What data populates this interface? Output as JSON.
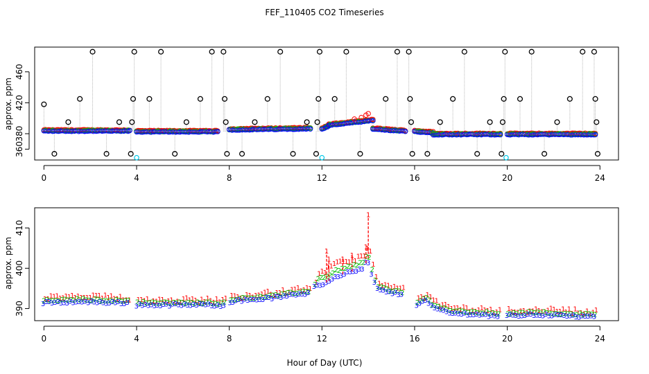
{
  "figure": {
    "title": "FEF_110405  CO2 Timeseries"
  },
  "chart_data": [
    {
      "type": "scatter",
      "title": "FEF_110405  CO2 Timeseries",
      "xlabel": "",
      "ylabel": "approx. ppm",
      "xlim": [
        -0.4,
        24.8
      ],
      "ylim": [
        346,
        492
      ],
      "x_ticks": [
        0,
        4,
        8,
        12,
        16,
        20,
        24
      ],
      "x_tick_labels": [
        "0",
        "4",
        "8",
        "12",
        "16",
        "20",
        "24"
      ],
      "y_ticks": [
        360,
        380,
        420,
        460
      ],
      "y_tick_labels": [
        "360",
        "380",
        "420",
        "460"
      ],
      "series": [
        {
          "name": "black circles",
          "color": "#000000",
          "marker": "circle"
        },
        {
          "name": "red circles",
          "color": "#ff0000",
          "marker": "circle"
        },
        {
          "name": "green circles",
          "color": "#00cc00",
          "marker": "circle"
        },
        {
          "name": "blue circles",
          "color": "#0000ff",
          "marker": "circle"
        },
        {
          "name": "cyan circles",
          "color": "#00c8e8",
          "marker": "circle"
        }
      ],
      "black_spikes": [
        {
          "x": 0.45,
          "y": 354
        },
        {
          "x": 1.05,
          "y": 395
        },
        {
          "x": 1.55,
          "y": 425
        },
        {
          "x": 2.1,
          "y": 486
        },
        {
          "x": 2.7,
          "y": 354
        },
        {
          "x": 3.25,
          "y": 395
        },
        {
          "x": 3.75,
          "y": 354
        },
        {
          "x": 3.8,
          "y": 395
        },
        {
          "x": 3.85,
          "y": 425
        },
        {
          "x": 3.9,
          "y": 486
        },
        {
          "x": 4.55,
          "y": 425
        },
        {
          "x": 5.05,
          "y": 486
        },
        {
          "x": 5.65,
          "y": 354
        },
        {
          "x": 6.15,
          "y": 395
        },
        {
          "x": 6.75,
          "y": 425
        },
        {
          "x": 7.25,
          "y": 486
        },
        {
          "x": 7.75,
          "y": 486
        },
        {
          "x": 7.8,
          "y": 425
        },
        {
          "x": 7.85,
          "y": 395
        },
        {
          "x": 7.9,
          "y": 354
        },
        {
          "x": 8.55,
          "y": 354
        },
        {
          "x": 9.1,
          "y": 395
        },
        {
          "x": 9.65,
          "y": 425
        },
        {
          "x": 10.2,
          "y": 486
        },
        {
          "x": 10.75,
          "y": 354
        },
        {
          "x": 11.35,
          "y": 395
        },
        {
          "x": 11.75,
          "y": 354
        },
        {
          "x": 11.8,
          "y": 395
        },
        {
          "x": 11.85,
          "y": 425
        },
        {
          "x": 11.9,
          "y": 486
        },
        {
          "x": 12.55,
          "y": 425
        },
        {
          "x": 13.05,
          "y": 486
        },
        {
          "x": 13.65,
          "y": 354
        },
        {
          "x": 14.75,
          "y": 425
        },
        {
          "x": 15.25,
          "y": 486
        },
        {
          "x": 15.75,
          "y": 486
        },
        {
          "x": 15.8,
          "y": 425
        },
        {
          "x": 15.85,
          "y": 395
        },
        {
          "x": 15.9,
          "y": 354
        },
        {
          "x": 16.55,
          "y": 354
        },
        {
          "x": 17.1,
          "y": 395
        },
        {
          "x": 17.65,
          "y": 425
        },
        {
          "x": 18.15,
          "y": 486
        },
        {
          "x": 18.7,
          "y": 354
        },
        {
          "x": 19.25,
          "y": 395
        },
        {
          "x": 19.75,
          "y": 354
        },
        {
          "x": 19.8,
          "y": 395
        },
        {
          "x": 19.85,
          "y": 425
        },
        {
          "x": 19.9,
          "y": 486
        },
        {
          "x": 20.55,
          "y": 425
        },
        {
          "x": 21.05,
          "y": 486
        },
        {
          "x": 21.6,
          "y": 354
        },
        {
          "x": 22.15,
          "y": 395
        },
        {
          "x": 22.7,
          "y": 425
        },
        {
          "x": 23.25,
          "y": 486
        },
        {
          "x": 23.75,
          "y": 486
        },
        {
          "x": 23.8,
          "y": 425
        },
        {
          "x": 23.85,
          "y": 395
        },
        {
          "x": 23.9,
          "y": 354
        },
        {
          "x": 0.0,
          "y": 418
        }
      ],
      "cyan_points": [
        {
          "x": 4.0,
          "y": 349
        },
        {
          "x": 12.0,
          "y": 349
        },
        {
          "x": 19.95,
          "y": 349
        }
      ],
      "baseline_ranges": [
        {
          "x_from": 0.0,
          "x_to": 3.7,
          "y_from": 383.5,
          "y_to": 383.5
        },
        {
          "x_from": 4.0,
          "x_to": 7.5,
          "y_from": 382.5,
          "y_to": 382.5
        },
        {
          "x_from": 8.0,
          "x_to": 11.5,
          "y_from": 385,
          "y_to": 386.5
        },
        {
          "x_from": 12.0,
          "x_to": 12.3,
          "y_from": 386,
          "y_to": 390
        },
        {
          "x_from": 12.3,
          "x_to": 14.2,
          "y_from": 391,
          "y_to": 397
        },
        {
          "x_from": 14.2,
          "x_to": 15.6,
          "y_from": 386,
          "y_to": 383
        },
        {
          "x_from": 16.0,
          "x_to": 16.8,
          "y_from": 383,
          "y_to": 381
        },
        {
          "x_from": 16.8,
          "x_to": 19.7,
          "y_from": 379,
          "y_to": 379
        },
        {
          "x_from": 20.0,
          "x_to": 23.8,
          "y_from": 379,
          "y_to": 379
        }
      ]
    },
    {
      "type": "scatter",
      "title": "",
      "xlabel": "Hour of Day (UTC)",
      "ylabel": "approx. ppm",
      "xlim": [
        -0.4,
        24.8
      ],
      "ylim": [
        387,
        415
      ],
      "x_ticks": [
        0,
        4,
        8,
        12,
        16,
        20,
        24
      ],
      "x_tick_labels": [
        "0",
        "4",
        "8",
        "12",
        "16",
        "20",
        "24"
      ],
      "y_ticks": [
        390,
        400,
        410
      ],
      "y_tick_labels": [
        "390",
        "400",
        "410"
      ],
      "series": [
        {
          "name": "1",
          "color": "#ff0000",
          "marker": "1"
        },
        {
          "name": "2",
          "color": "#00bb00",
          "marker": "2"
        },
        {
          "name": "3",
          "color": "#0000ff",
          "marker": "3"
        }
      ],
      "curve": [
        {
          "x": 0.0,
          "y": 391.5
        },
        {
          "x": 1.5,
          "y": 391.8
        },
        {
          "x": 3.7,
          "y": 391.5
        },
        {
          "x": 4.0,
          "y": 391.0
        },
        {
          "x": 7.5,
          "y": 391.0
        },
        {
          "x": 7.6,
          "y": 390.8
        },
        {
          "x": 7.8,
          "y": 391.0
        },
        {
          "x": 8.0,
          "y": 391.8
        },
        {
          "x": 10.0,
          "y": 392.8
        },
        {
          "x": 11.5,
          "y": 394.0
        },
        {
          "x": 11.6,
          "y": 395.0
        },
        {
          "x": 11.8,
          "y": 396.0
        },
        {
          "x": 12.0,
          "y": 396.0
        },
        {
          "x": 12.2,
          "y": 396.5
        },
        {
          "x": 12.6,
          "y": 398.0
        },
        {
          "x": 13.2,
          "y": 399.0
        },
        {
          "x": 13.8,
          "y": 400.0
        },
        {
          "x": 14.0,
          "y": 402.5
        },
        {
          "x": 14.1,
          "y": 399.5
        },
        {
          "x": 14.4,
          "y": 395.0
        },
        {
          "x": 15.0,
          "y": 394.0
        },
        {
          "x": 15.6,
          "y": 393.6
        },
        {
          "x": 16.0,
          "y": 390.5
        },
        {
          "x": 16.5,
          "y": 392.5
        },
        {
          "x": 16.8,
          "y": 390.5
        },
        {
          "x": 17.5,
          "y": 389.0
        },
        {
          "x": 19.7,
          "y": 388.3
        },
        {
          "x": 20.0,
          "y": 388.3
        },
        {
          "x": 21.5,
          "y": 388.6
        },
        {
          "x": 23.8,
          "y": 388.0
        }
      ],
      "red_spikes": [
        {
          "x": 12.2,
          "y": 404
        },
        {
          "x": 12.3,
          "y": 402
        },
        {
          "x": 13.9,
          "y": 405
        },
        {
          "x": 14.0,
          "y": 413
        },
        {
          "x": 12.9,
          "y": 402
        },
        {
          "x": 13.3,
          "y": 403
        }
      ]
    }
  ],
  "panels": {
    "top": {
      "ylabel": "approx. ppm",
      "x_tick_labels": [
        "0",
        "4",
        "8",
        "12",
        "16",
        "20",
        "24"
      ],
      "y_tick_labels": [
        "360",
        "380",
        "420",
        "460"
      ]
    },
    "bottom": {
      "ylabel": "approx. ppm",
      "xlabel": "Hour of Day (UTC)",
      "x_tick_labels": [
        "0",
        "4",
        "8",
        "12",
        "16",
        "20",
        "24"
      ],
      "y_tick_labels": [
        "390",
        "400",
        "410"
      ]
    }
  }
}
